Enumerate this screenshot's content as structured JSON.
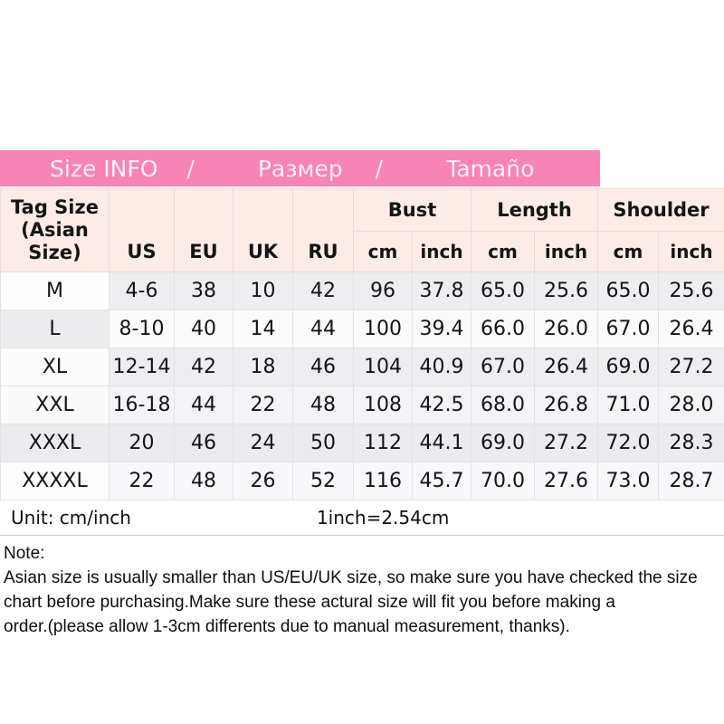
{
  "colors": {
    "title_bar_bg": "#f884b5",
    "title_bar_text": "#fdeff3",
    "header_cell_bg": "#fcebe7"
  },
  "title_bar": {
    "segments": [
      "Size INFO",
      "/",
      "Размер",
      "/",
      "Tamaño"
    ]
  },
  "table": {
    "header": {
      "tag_size_line1": "Tag Size",
      "tag_size_line2": "(Asian Size)",
      "size_cols": [
        "US",
        "EU",
        "UK",
        "RU"
      ],
      "measure_groups": [
        "Bust",
        "Length",
        "Shoulder"
      ],
      "unit_sub": [
        "cm",
        "inch"
      ]
    },
    "rows": [
      {
        "cells": [
          "M",
          "4-6",
          "38",
          "10",
          "42",
          "96",
          "37.8",
          "65.0",
          "25.6",
          "65.0",
          "25.6"
        ]
      },
      {
        "cells": [
          "L",
          "8-10",
          "40",
          "14",
          "44",
          "100",
          "39.4",
          "66.0",
          "26.0",
          "67.0",
          "26.4"
        ]
      },
      {
        "cells": [
          "XL",
          "12-14",
          "42",
          "18",
          "46",
          "104",
          "40.9",
          "67.0",
          "26.4",
          "69.0",
          "27.2"
        ]
      },
      {
        "cells": [
          "XXL",
          "16-18",
          "44",
          "22",
          "48",
          "108",
          "42.5",
          "68.0",
          "26.8",
          "71.0",
          "28.0"
        ]
      },
      {
        "cells": [
          "XXXL",
          "20",
          "46",
          "24",
          "50",
          "112",
          "44.1",
          "69.0",
          "27.2",
          "72.0",
          "28.3"
        ]
      },
      {
        "cells": [
          "XXXXL",
          "22",
          "48",
          "26",
          "52",
          "116",
          "45.7",
          "70.0",
          "27.6",
          "73.0",
          "28.7"
        ]
      }
    ]
  },
  "footer": {
    "unit_label": "Unit: cm/inch",
    "conversion": "1inch=2.54cm"
  },
  "note": {
    "heading": "Note:",
    "lines": [
      "Asian size is usually smaller than US/EU/UK size, so make sure you have checked the size",
      "chart before purchasing.Make sure these actural size will fit you before making a",
      "order.(please allow 1-3cm differents due to manual measurement, thanks)."
    ]
  }
}
